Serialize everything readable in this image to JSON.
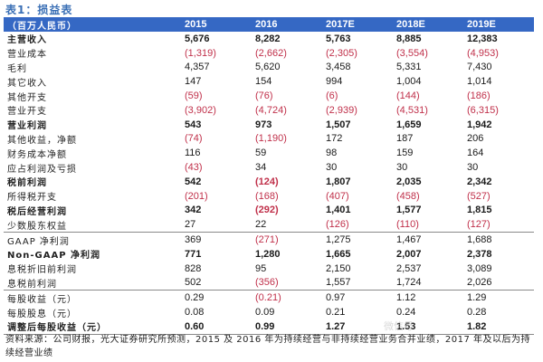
{
  "title": "表1：损益表",
  "table": {
    "unit_header": "（百万人民币）",
    "columns": [
      "2015",
      "2016",
      "2017E",
      "2018E",
      "2019E"
    ],
    "rows": [
      {
        "label": "主营收入",
        "bold": true,
        "rule": false,
        "values": [
          "5,676",
          "8,282",
          "5,763",
          "8,885",
          "12,383"
        ],
        "neg": [
          false,
          false,
          false,
          false,
          false
        ]
      },
      {
        "label": "营业成本",
        "bold": false,
        "rule": false,
        "values": [
          "(1,319)",
          "(2,662)",
          "(2,305)",
          "(3,554)",
          "(4,953)"
        ],
        "neg": [
          true,
          true,
          true,
          true,
          true
        ]
      },
      {
        "label": "毛利",
        "bold": false,
        "rule": false,
        "values": [
          "4,357",
          "5,620",
          "3,458",
          "5,331",
          "7,430"
        ],
        "neg": [
          false,
          false,
          false,
          false,
          false
        ]
      },
      {
        "label": "其它收入",
        "bold": false,
        "rule": false,
        "values": [
          "147",
          "154",
          "994",
          "1,004",
          "1,014"
        ],
        "neg": [
          false,
          false,
          false,
          false,
          false
        ]
      },
      {
        "label": "其他开支",
        "bold": false,
        "rule": false,
        "values": [
          "(59)",
          "(76)",
          "(6)",
          "(144)",
          "(186)"
        ],
        "neg": [
          true,
          true,
          true,
          true,
          true
        ]
      },
      {
        "label": "营业开支",
        "bold": false,
        "rule": false,
        "values": [
          "(3,902)",
          "(4,724)",
          "(2,939)",
          "(4,531)",
          "(6,315)"
        ],
        "neg": [
          true,
          true,
          true,
          true,
          true
        ]
      },
      {
        "label": "营业利润",
        "bold": true,
        "rule": false,
        "values": [
          "543",
          "973",
          "1,507",
          "1,659",
          "1,942"
        ],
        "neg": [
          false,
          false,
          false,
          false,
          false
        ]
      },
      {
        "label": "其他收益，净额",
        "bold": false,
        "rule": false,
        "values": [
          "(74)",
          "(1,190)",
          "172",
          "187",
          "206"
        ],
        "neg": [
          true,
          true,
          false,
          false,
          false
        ]
      },
      {
        "label": "财务成本净额",
        "bold": false,
        "rule": false,
        "values": [
          "116",
          "59",
          "98",
          "159",
          "164"
        ],
        "neg": [
          false,
          false,
          false,
          false,
          false
        ]
      },
      {
        "label": "应占利润及亏损",
        "bold": false,
        "rule": false,
        "values": [
          "(43)",
          "34",
          "30",
          "30",
          "30"
        ],
        "neg": [
          true,
          false,
          false,
          false,
          false
        ]
      },
      {
        "label": "税前利润",
        "bold": true,
        "rule": false,
        "values": [
          "542",
          "(124)",
          "1,807",
          "2,035",
          "2,342"
        ],
        "neg": [
          false,
          true,
          false,
          false,
          false
        ]
      },
      {
        "label": "所得税开支",
        "bold": false,
        "rule": false,
        "values": [
          "(201)",
          "(168)",
          "(407)",
          "(458)",
          "(527)"
        ],
        "neg": [
          true,
          true,
          true,
          true,
          true
        ]
      },
      {
        "label": "税后经营利润",
        "bold": true,
        "rule": false,
        "values": [
          "342",
          "(292)",
          "1,401",
          "1,577",
          "1,815"
        ],
        "neg": [
          false,
          true,
          false,
          false,
          false
        ]
      },
      {
        "label": "少数股东权益",
        "bold": false,
        "rule": true,
        "values": [
          "27",
          "22",
          "(126)",
          "(110)",
          "(127)"
        ],
        "neg": [
          false,
          false,
          true,
          true,
          true
        ]
      },
      {
        "label": "GAAP 净利润",
        "bold": false,
        "rule": false,
        "values": [
          "369",
          "(271)",
          "1,275",
          "1,467",
          "1,688"
        ],
        "neg": [
          false,
          true,
          false,
          false,
          false
        ]
      },
      {
        "label": "Non-GAAP 净利润",
        "bold": true,
        "rule": false,
        "values": [
          "771",
          "1,280",
          "1,665",
          "2,007",
          "2,378"
        ],
        "neg": [
          false,
          false,
          false,
          false,
          false
        ]
      },
      {
        "label": "息税折旧前利润",
        "bold": false,
        "rule": false,
        "values": [
          "828",
          "95",
          "2,150",
          "2,537",
          "3,089"
        ],
        "neg": [
          false,
          false,
          false,
          false,
          false
        ]
      },
      {
        "label": "息税前利润",
        "bold": false,
        "rule": true,
        "values": [
          "502",
          "(356)",
          "1,557",
          "1,724",
          "2,026"
        ],
        "neg": [
          false,
          true,
          false,
          false,
          false
        ]
      },
      {
        "label": "每股收益（元）",
        "bold": false,
        "rule": false,
        "values": [
          "0.29",
          "(0.21)",
          "0.97",
          "1.12",
          "1.29"
        ],
        "neg": [
          false,
          true,
          false,
          false,
          false
        ]
      },
      {
        "label": "每股股息（元）",
        "bold": false,
        "rule": false,
        "values": [
          "0.08",
          "0.09",
          "0.21",
          "0.24",
          "0.28"
        ],
        "neg": [
          false,
          false,
          false,
          false,
          false
        ]
      },
      {
        "label": "调整后每股收益（元）",
        "bold": true,
        "rule": true,
        "values": [
          "0.60",
          "0.99",
          "1.27",
          "1.53",
          "1.82"
        ],
        "neg": [
          false,
          false,
          false,
          false,
          false
        ]
      }
    ]
  },
  "footnote": "资料来源：公司财报，光大证券研究所预测，2015 及 2016 年为持续经营与非持续经营业务合并业绩，2017 年及以后为持续经营业绩",
  "watermark": "微信号",
  "colors": {
    "header_bg": "#3568c4",
    "title": "#3a6fb5",
    "negative": "#c0304a",
    "rule": "#8a8a8a"
  }
}
